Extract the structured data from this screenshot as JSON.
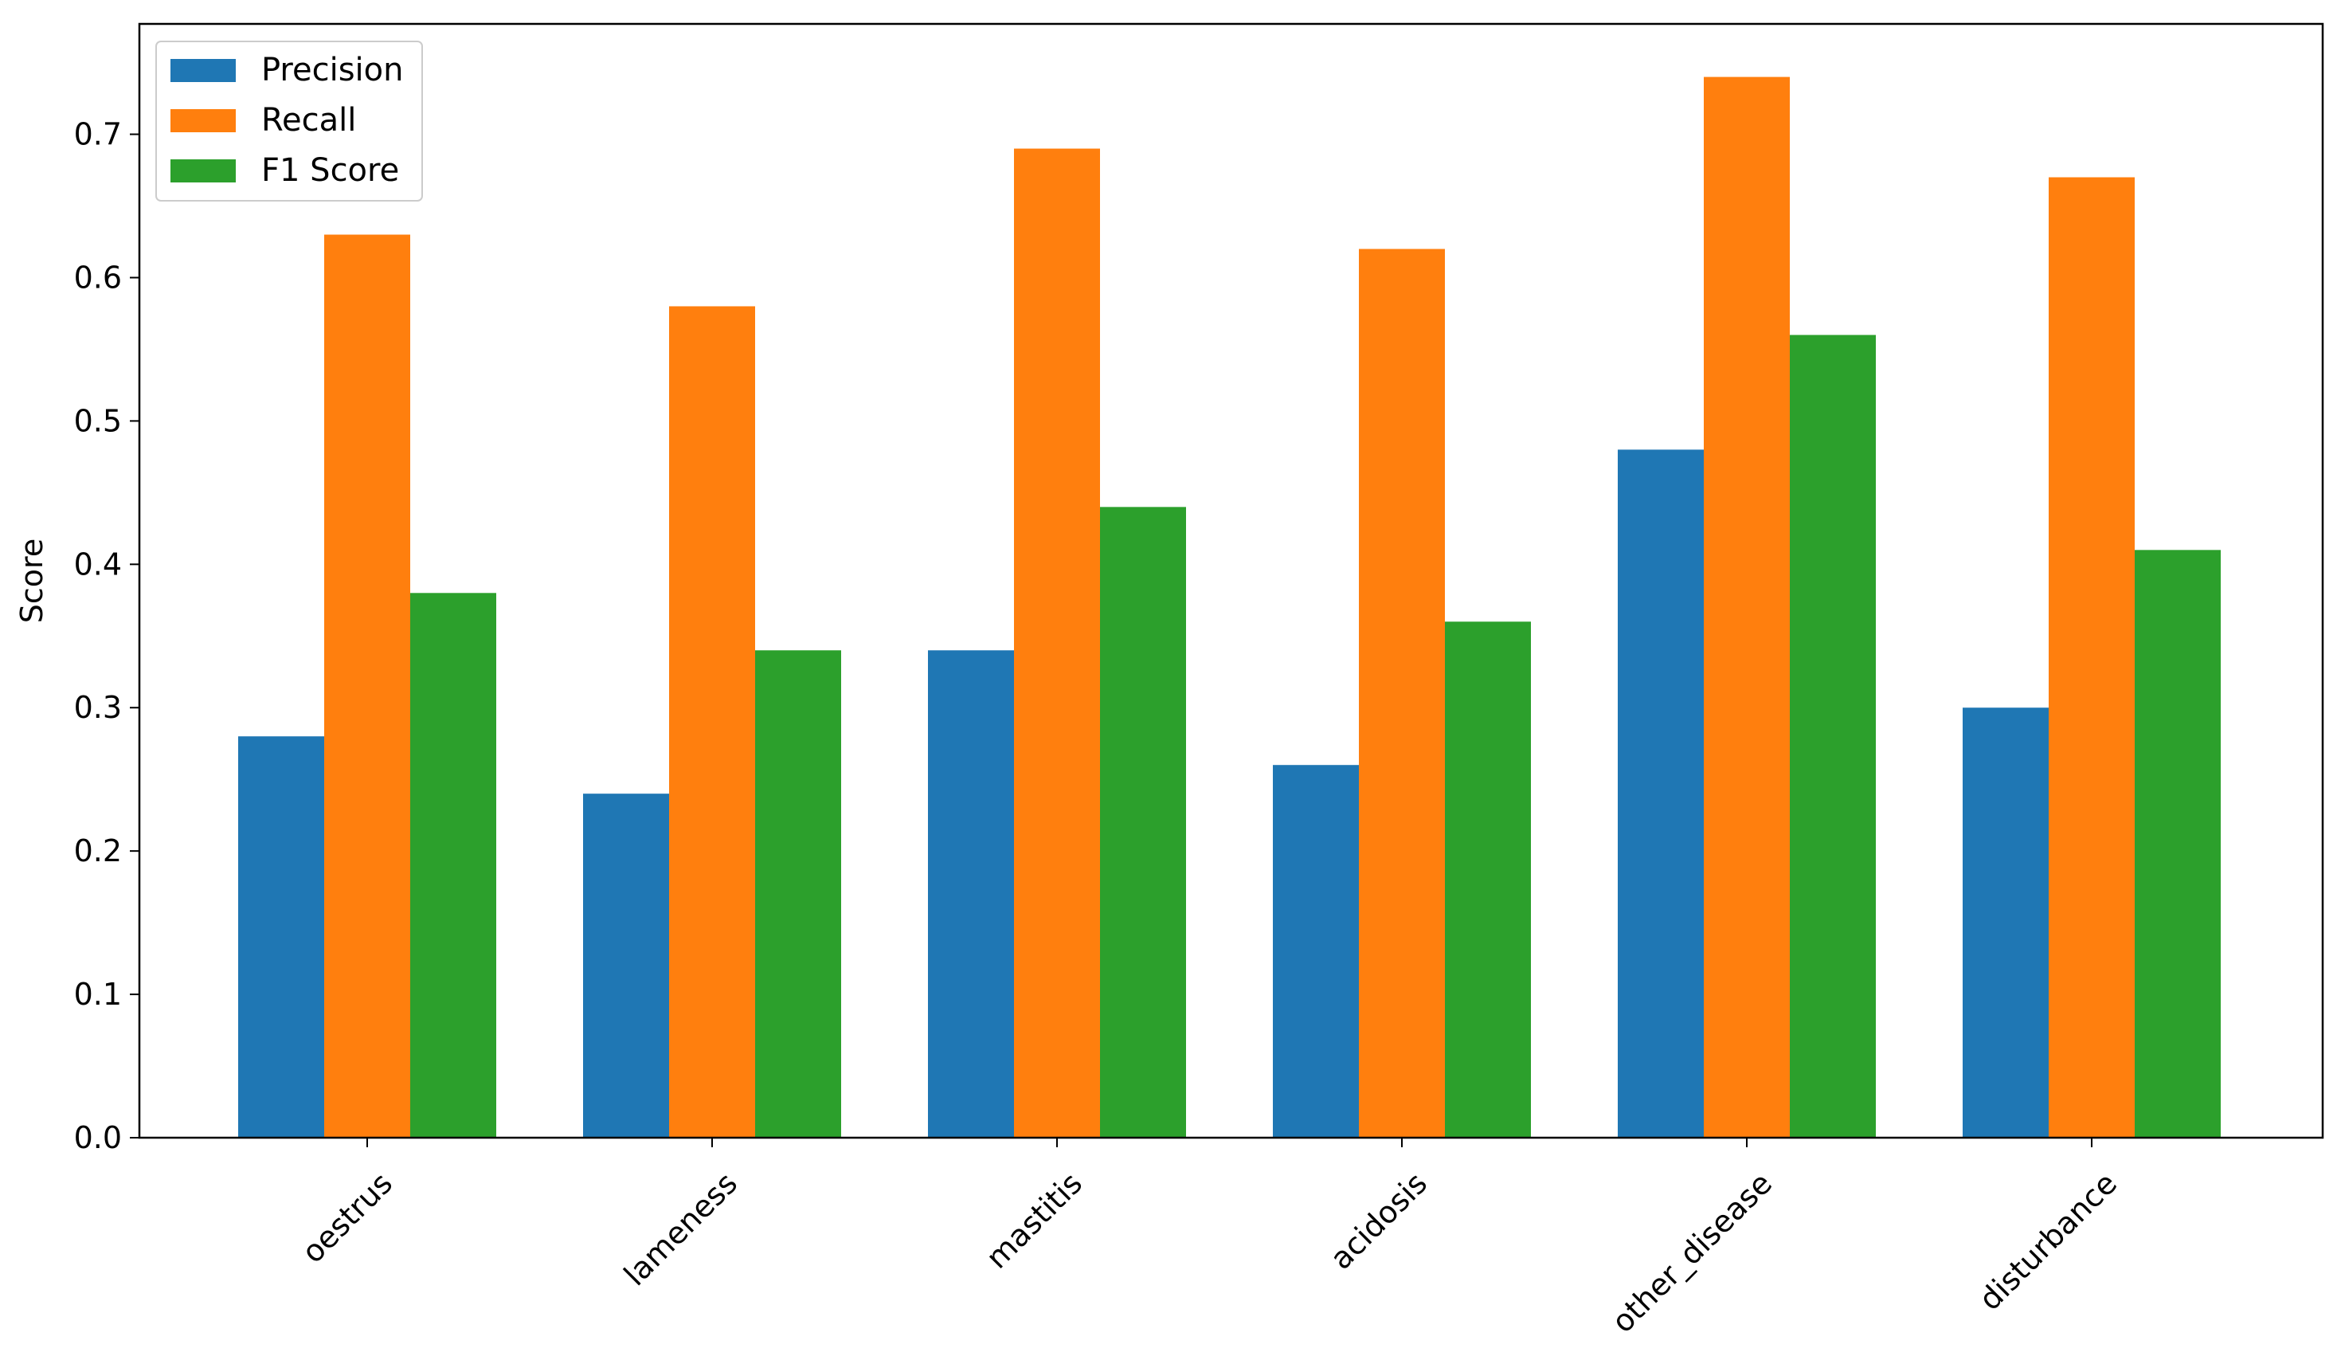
{
  "chart_data": {
    "type": "bar",
    "title": "",
    "xlabel": "",
    "ylabel": "Score",
    "categories": [
      "oestrus",
      "lameness",
      "mastitis",
      "acidosis",
      "other_disease",
      "disturbance"
    ],
    "series": [
      {
        "name": "Precision",
        "color": "#1f77b4",
        "values": [
          0.28,
          0.24,
          0.34,
          0.26,
          0.48,
          0.3
        ]
      },
      {
        "name": "Recall",
        "color": "#ff7f0e",
        "values": [
          0.63,
          0.58,
          0.69,
          0.62,
          0.74,
          0.67
        ]
      },
      {
        "name": "F1 Score",
        "color": "#2ca02c",
        "values": [
          0.38,
          0.34,
          0.44,
          0.36,
          0.56,
          0.41
        ]
      }
    ],
    "ylim": [
      0,
      0.777
    ],
    "yticks": [
      "0.0",
      "0.1",
      "0.2",
      "0.3",
      "0.4",
      "0.5",
      "0.6",
      "0.7"
    ],
    "ytick_values": [
      0.0,
      0.1,
      0.2,
      0.3,
      0.4,
      0.5,
      0.6,
      0.7
    ],
    "grid": false,
    "legend_position": "upper-left"
  }
}
